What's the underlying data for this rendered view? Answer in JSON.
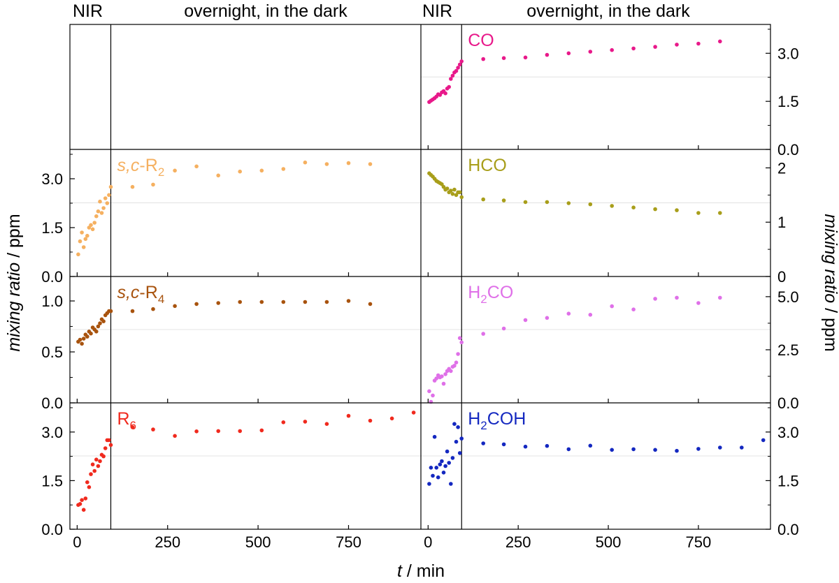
{
  "figure": {
    "section_labels": [
      {
        "text": "NIR"
      },
      {
        "text": "overnight, in the dark"
      },
      {
        "text": "NIR"
      },
      {
        "text": "overnight, in the dark"
      }
    ],
    "xlabel_italic": "t",
    "xlabel_rest": " / min",
    "ylabel_italic": "mixing ratio",
    "ylabel_rest": " / ppm"
  },
  "chart_data": [
    {
      "type": "scatter",
      "id": "sc-R2",
      "column": "left",
      "row": 1,
      "label": {
        "prefix_italic": "s,c",
        "main": "-R",
        "sub": "2"
      },
      "color": "#f5b060",
      "xlim": [
        -20,
        950
      ],
      "ylim": [
        0,
        3.9
      ],
      "yticks": [
        0.0,
        1.5,
        3.0
      ],
      "ytick_labels": [
        "0.0",
        "1.5",
        "3.0"
      ],
      "ytick_side": "left",
      "xticks": [
        0,
        250,
        500,
        750
      ],
      "x": [
        3,
        8,
        13,
        18,
        23,
        28,
        33,
        38,
        43,
        48,
        53,
        58,
        63,
        68,
        73,
        78,
        83,
        88,
        93,
        153,
        210,
        270,
        330,
        390,
        450,
        510,
        570,
        630,
        690,
        750,
        810
      ],
      "y": [
        0.68,
        1.08,
        1.35,
        0.9,
        1.15,
        1.25,
        1.5,
        1.58,
        1.45,
        1.65,
        1.85,
        2.0,
        2.3,
        1.95,
        2.1,
        2.4,
        2.25,
        2.5,
        2.75,
        2.75,
        2.82,
        3.25,
        3.38,
        3.1,
        3.22,
        3.25,
        3.3,
        3.5,
        3.45,
        3.48,
        3.45
      ]
    },
    {
      "type": "scatter",
      "id": "sc-R4",
      "column": "left",
      "row": 2,
      "label": {
        "prefix_italic": "s,c",
        "main": "-R",
        "sub": "4"
      },
      "color": "#a8530e",
      "xlim": [
        -20,
        950
      ],
      "ylim": [
        0,
        1.24
      ],
      "yticks": [
        0.0,
        0.5,
        1.0
      ],
      "ytick_labels": [
        "0.0",
        "0.5",
        "1.0"
      ],
      "ytick_side": "left",
      "xticks": [
        0,
        250,
        500,
        750
      ],
      "x": [
        3,
        8,
        13,
        18,
        23,
        28,
        33,
        38,
        43,
        48,
        53,
        58,
        63,
        68,
        73,
        78,
        83,
        88,
        93,
        153,
        210,
        270,
        330,
        390,
        450,
        510,
        570,
        630,
        690,
        750,
        810
      ],
      "y": [
        0.6,
        0.62,
        0.58,
        0.63,
        0.67,
        0.65,
        0.7,
        0.68,
        0.74,
        0.72,
        0.7,
        0.75,
        0.78,
        0.82,
        0.8,
        0.86,
        0.88,
        0.9,
        0.9,
        0.9,
        0.92,
        0.95,
        0.97,
        0.98,
        0.99,
        0.99,
        0.99,
        0.99,
        0.99,
        1.0,
        0.97
      ]
    },
    {
      "type": "scatter",
      "id": "R6",
      "column": "left",
      "row": 3,
      "label": {
        "prefix_italic": "",
        "main": "R",
        "sub": "6"
      },
      "color": "#f02a1e",
      "xlim": [
        -20,
        950
      ],
      "ylim": [
        0,
        3.9
      ],
      "yticks": [
        0.0,
        1.5,
        3.0
      ],
      "ytick_labels": [
        "0.0",
        "1.5",
        "3.0"
      ],
      "ytick_side": "left",
      "xticks": [
        0,
        250,
        500,
        750
      ],
      "xtick_labels": [
        "0",
        "250",
        "500",
        "750"
      ],
      "x": [
        3,
        8,
        13,
        18,
        23,
        28,
        33,
        38,
        43,
        48,
        53,
        58,
        63,
        68,
        73,
        78,
        83,
        88,
        93,
        153,
        210,
        270,
        330,
        390,
        450,
        510,
        570,
        630,
        690,
        750,
        810,
        870,
        930
      ],
      "y": [
        0.75,
        0.78,
        0.9,
        0.6,
        0.95,
        1.45,
        1.3,
        1.7,
        2.0,
        1.8,
        2.15,
        1.95,
        2.1,
        2.3,
        2.25,
        2.5,
        2.75,
        2.75,
        2.6,
        3.15,
        3.08,
        2.88,
        3.02,
        3.03,
        3.03,
        3.05,
        3.3,
        3.32,
        3.25,
        3.5,
        3.35,
        3.42,
        3.6
      ]
    },
    {
      "type": "scatter",
      "id": "CO",
      "column": "right",
      "row": 0,
      "label": {
        "prefix_italic": "",
        "main": "CO",
        "sub": ""
      },
      "color": "#e8198a",
      "xlim": [
        -20,
        950
      ],
      "ylim": [
        0,
        3.9
      ],
      "yticks": [
        0.0,
        1.5,
        3.0
      ],
      "ytick_labels": [
        "0.0",
        "1.5",
        "3.0"
      ],
      "ytick_side": "right",
      "xticks": [
        0,
        250,
        500,
        750
      ],
      "x": [
        3,
        8,
        13,
        18,
        23,
        28,
        33,
        38,
        43,
        48,
        53,
        58,
        63,
        68,
        73,
        78,
        83,
        88,
        93,
        153,
        210,
        270,
        330,
        390,
        450,
        510,
        570,
        630,
        690,
        750,
        810
      ],
      "y": [
        1.48,
        1.52,
        1.56,
        1.6,
        1.65,
        1.72,
        1.7,
        1.78,
        1.82,
        1.75,
        1.9,
        1.95,
        2.2,
        2.3,
        2.4,
        2.45,
        2.55,
        2.65,
        2.75,
        2.82,
        2.85,
        2.87,
        2.95,
        3.0,
        3.05,
        3.1,
        3.15,
        3.2,
        3.27,
        3.3,
        3.37
      ]
    },
    {
      "type": "scatter",
      "id": "HCO",
      "column": "right",
      "row": 1,
      "label": {
        "prefix_italic": "",
        "main": "HCO",
        "sub": ""
      },
      "color": "#a89e1a",
      "xlim": [
        -20,
        950
      ],
      "ylim": [
        0,
        2.34
      ],
      "yticks": [
        0,
        1,
        2
      ],
      "ytick_labels": [
        "0",
        "1",
        "2"
      ],
      "ytick_side": "right",
      "xticks": [
        0,
        250,
        500,
        750
      ],
      "x": [
        3,
        8,
        13,
        18,
        23,
        28,
        33,
        38,
        43,
        48,
        53,
        58,
        63,
        68,
        73,
        78,
        83,
        88,
        93,
        153,
        210,
        270,
        330,
        390,
        450,
        510,
        570,
        630,
        690,
        750,
        810
      ],
      "y": [
        1.9,
        1.87,
        1.84,
        1.8,
        1.76,
        1.74,
        1.72,
        1.7,
        1.65,
        1.6,
        1.62,
        1.55,
        1.58,
        1.52,
        1.6,
        1.5,
        1.55,
        1.55,
        1.46,
        1.42,
        1.4,
        1.37,
        1.37,
        1.35,
        1.33,
        1.3,
        1.27,
        1.24,
        1.22,
        1.17,
        1.17
      ]
    },
    {
      "type": "scatter",
      "id": "H2CO",
      "column": "right",
      "row": 2,
      "label": {
        "prefix_italic": "",
        "main": "H",
        "sub": "2",
        "suffix": "CO"
      },
      "color": "#df70e8",
      "xlim": [
        -20,
        950
      ],
      "ylim": [
        0,
        5.95
      ],
      "yticks": [
        0.0,
        2.5,
        5.0
      ],
      "ytick_labels": [
        "0.0",
        "2.5",
        "5.0"
      ],
      "ytick_side": "right",
      "xticks": [
        0,
        250,
        500,
        750
      ],
      "x": [
        3,
        8,
        13,
        18,
        23,
        28,
        33,
        38,
        43,
        48,
        53,
        58,
        63,
        68,
        73,
        78,
        83,
        88,
        93,
        153,
        210,
        270,
        330,
        390,
        450,
        510,
        570,
        630,
        690,
        750,
        810
      ],
      "y": [
        0.55,
        0.05,
        0.35,
        1.05,
        1.15,
        1.3,
        1.2,
        1.25,
        0.9,
        1.35,
        1.5,
        1.6,
        1.5,
        1.7,
        1.75,
        1.9,
        2.3,
        3.05,
        2.85,
        3.25,
        3.5,
        3.9,
        4.0,
        4.2,
        4.15,
        4.55,
        4.4,
        4.9,
        4.95,
        4.7,
        4.95
      ]
    },
    {
      "type": "scatter",
      "id": "H2COH",
      "column": "right",
      "row": 3,
      "label": {
        "prefix_italic": "",
        "main": "H",
        "sub": "2",
        "suffix": "COH"
      },
      "color": "#1428c0",
      "xlim": [
        -20,
        950
      ],
      "ylim": [
        0,
        3.9
      ],
      "yticks": [
        0.0,
        1.5,
        3.0
      ],
      "ytick_labels": [
        "0.0",
        "1.5",
        "3.0"
      ],
      "ytick_side": "right",
      "xticks": [
        0,
        250,
        500,
        750
      ],
      "xtick_labels": [
        "0",
        "250",
        "500",
        "750"
      ],
      "x": [
        3,
        8,
        13,
        18,
        23,
        28,
        33,
        38,
        43,
        48,
        53,
        58,
        63,
        68,
        73,
        78,
        83,
        88,
        93,
        153,
        210,
        270,
        330,
        390,
        450,
        510,
        570,
        630,
        690,
        750,
        810,
        870,
        930
      ],
      "y": [
        1.4,
        1.9,
        1.65,
        2.85,
        1.9,
        1.6,
        2.0,
        2.1,
        1.75,
        1.95,
        2.4,
        2.05,
        1.4,
        2.2,
        3.25,
        2.7,
        3.15,
        2.35,
        2.8,
        2.65,
        2.62,
        2.55,
        2.57,
        2.47,
        2.58,
        2.45,
        2.47,
        2.45,
        2.42,
        2.48,
        2.52,
        2.52,
        2.75
      ]
    }
  ]
}
